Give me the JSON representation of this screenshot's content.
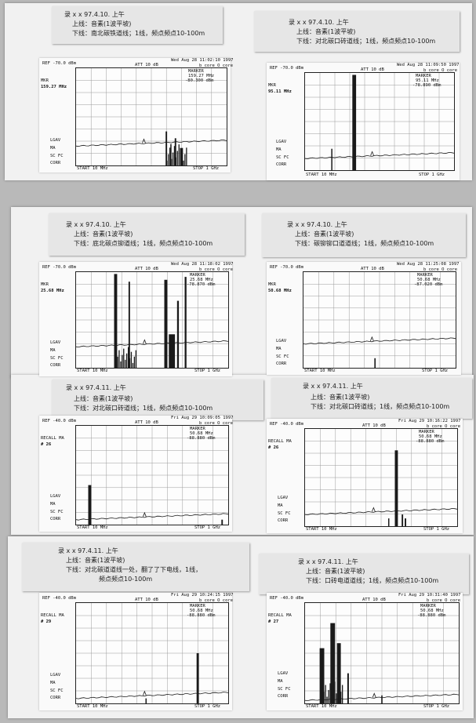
{
  "colors": {
    "paper": "#f1f1f1",
    "ink": "#111111",
    "grid": "#9a9a9a",
    "trace": "#1a1a1a"
  },
  "notes": [
    {
      "l1": "录 x x  97.4.10. 上午",
      "l2": "上线：音素(1波平坡)",
      "l3": "下线：南北碳铁道线；1线，频点频点10-100m"
    },
    {
      "l1": "录 x x  97.4.10. 上午",
      "l2": "上线：音素(1波平坡)",
      "l3": "下线：对北碳口砖道线；1线，频点频点10-100m"
    },
    {
      "l1": "录 x x  97.4.10. 上午",
      "l2": "上线：音素(1波平坡)",
      "l3": "下线：底北碳点铆道线；1线，频点频点10-100m"
    },
    {
      "l1": "录 x x  97.4.10. 上午",
      "l2": "上线：音素(1波平坡)",
      "l3": "下线：碳铆铆口道道线；1线，频点频点10-100m"
    },
    {
      "l1": "录 x x  97.4.11. 上午",
      "l2": "上线：音素(1波平坡)",
      "l3": "下线：对北碳口砖道线；1线，频点频点10-100m"
    },
    {
      "l1": "录 x x  97.4.11. 上午",
      "l2": "上线：音素(1波平坡)",
      "l3": "下线：对北碳口砖道线；1线，频点频点10-100m"
    },
    {
      "l1": "录 x x  97.4.11. 上午",
      "l2": "上线：音素(1波平坡)",
      "l3": "下线：对北碳道道线一处，翻了了下电线，1线，",
      "l4": "频点频点10-100m"
    },
    {
      "l1": "录 x x  97.4.11. 上午",
      "l2": "上线：音素(1波平坡)",
      "l3": "下线：口砖电道道线；1线，频点频点10-100m"
    }
  ],
  "plots": [
    {
      "ref": "REF -70.0 dBm",
      "att": "ATT 10 dB",
      "date": "Wed Aug 28 11:02:10 1997",
      "sub": "b_core_O_core",
      "marker": "MARKER",
      "mfreq": "159.27 MHz",
      "mamp": "-80.300 dBm",
      "left1": "MKR",
      "left2": "159.27 MHz",
      "start": "START 10 MHz",
      "stop": "STOP 1 GHz",
      "lg1": "LGAV",
      "lg2": "MA",
      "lg3": "SC FC",
      "lg4": "CORR"
    },
    {
      "ref": "REF -70.0 dBm",
      "att": "ATT 10 dB",
      "date": "Wed Aug 28 11:09:50 1997",
      "sub": "b_core_O_core",
      "marker": "MARKER",
      "mfreq": "95.11 MHz",
      "mamp": "-78.890 dBm",
      "left1": "MKR",
      "left2": "95.11 MHz",
      "start": "START 10 MHz",
      "stop": "STOP 1 GHz",
      "lg1": "LGAV",
      "lg2": "MA",
      "lg3": "SC FC",
      "lg4": "CORR"
    },
    {
      "ref": "REF -70.0 dBm",
      "att": "ATT 10 dB",
      "date": "Wed Aug 28 11:18:02 1997",
      "sub": "b_core_O_core",
      "marker": "MARKER",
      "mfreq": "25.68 MHz",
      "mamp": "-78.870 dBm",
      "left1": "MKR",
      "left2": "25.68 MHz",
      "start": "START 10 MHz",
      "stop": "STOP 1 GHz",
      "lg1": "LGAV",
      "lg2": "MA",
      "lg3": "SC FC",
      "lg4": "CORR"
    },
    {
      "ref": "REF -70.0 dBm",
      "att": "ATT 10 dB",
      "date": "Wed Aug 28 11:25:08 1997",
      "sub": "b_core_O_core",
      "marker": "MARKER",
      "mfreq": "50.68 MHz",
      "mamp": "-87.020 dBm",
      "left1": "MKR",
      "left2": "50.68 MHz",
      "start": "START 10 MHz",
      "stop": "STOP 1 GHz",
      "lg1": "LGAV",
      "lg2": "MA",
      "lg3": "SC FC",
      "lg4": "CORR"
    },
    {
      "ref": "REF -40.0 dBm",
      "att": "ATT 10 dB",
      "date": "Fri Aug 29 10:09:05 1997",
      "sub": "b_core_O_core",
      "marker": "MARKER",
      "mfreq": "50.68 MHz",
      "mamp": "-88.880 dBm",
      "left1": "RECALL MA",
      "left2": "# 26",
      "start": "START 10 MHz",
      "stop": "STOP 1 GHz",
      "lg1": "LGAV",
      "lg2": "MA",
      "lg3": "SC FC",
      "lg4": "CORR"
    },
    {
      "ref": "REF -40.0 dBm",
      "att": "ATT 10 dB",
      "date": "Fri Aug 29 10:16:22 1997",
      "sub": "b_core_O_core",
      "marker": "MARKER",
      "mfreq": "50.68 MHz",
      "mamp": "-88.880 dBm",
      "left1": "RECALL MA",
      "left2": "# 26",
      "start": "START 10 MHz",
      "stop": "STOP 1 GHz",
      "lg1": "LGAV",
      "lg2": "MA",
      "lg3": "SC FC",
      "lg4": "CORR"
    },
    {
      "ref": "REF -40.0 dBm",
      "att": "ATT 10 dB",
      "date": "Fri Aug 29 10:24:15 1997",
      "sub": "b_core_O_core",
      "marker": "MARKER",
      "mfreq": "50.68 MHz",
      "mamp": "-88.880 dBm",
      "left1": "RECALL MA",
      "left2": "# 29",
      "start": "START 10 MHz",
      "stop": "STOP 1 GHz",
      "lg1": "LGAV",
      "lg2": "MA",
      "lg3": "SC FC",
      "lg4": "CORR"
    },
    {
      "ref": "REF -40.0 dBm",
      "att": "ATT 10 dB",
      "date": "Fri Aug 29 10:31:40 1997",
      "sub": "b_core_O_core",
      "marker": "MARKER",
      "mfreq": "50.68 MHz",
      "mamp": "-88.880 dBm",
      "left1": "RECALL MA",
      "left2": "# 27",
      "start": "START 10 MHz",
      "stop": "STOP 1 GHz",
      "lg1": "LGAV",
      "lg2": "MA",
      "lg3": "SC FC",
      "lg4": "CORR"
    }
  ]
}
